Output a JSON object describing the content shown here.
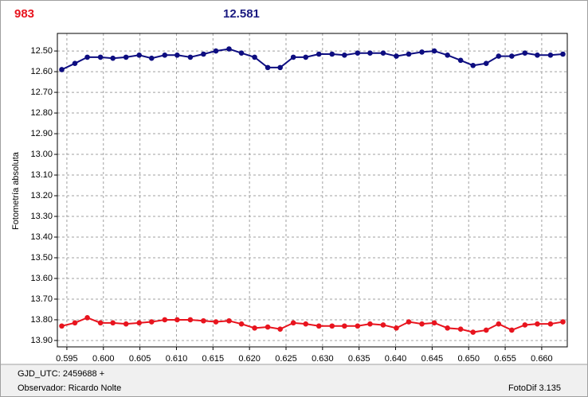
{
  "chart_data": {
    "type": "line",
    "header_labels": [
      {
        "text": "983",
        "color": "#e8141e"
      },
      {
        "text": "12.581",
        "color": "#1a1a80"
      }
    ],
    "y_label": "Fotometría absoluta",
    "footer": {
      "left": [
        "GJD_UTC: 2459688 +",
        "Observador: Ricardo Nolte"
      ],
      "right": "FotoDif 3.135"
    },
    "x": [
      0.5943,
      0.5961,
      0.5978,
      0.5996,
      0.6013,
      0.6031,
      0.6049,
      0.6066,
      0.6084,
      0.6101,
      0.6119,
      0.6137,
      0.6154,
      0.6172,
      0.6189,
      0.6207,
      0.6225,
      0.6242,
      0.626,
      0.6277,
      0.6295,
      0.6313,
      0.633,
      0.6348,
      0.6365,
      0.6383,
      0.6401,
      0.6418,
      0.6436,
      0.6453,
      0.6471,
      0.6489,
      0.6506,
      0.6524,
      0.6541,
      0.6559,
      0.6577,
      0.6594,
      0.6612,
      0.6629
    ],
    "series": [
      {
        "color": "#0d0d80",
        "values": [
          12.59,
          12.56,
          12.53,
          12.53,
          12.535,
          12.53,
          12.52,
          12.535,
          12.52,
          12.52,
          12.53,
          12.515,
          12.5,
          12.49,
          12.51,
          12.53,
          12.58,
          12.58,
          12.53,
          12.53,
          12.515,
          12.515,
          12.52,
          12.51,
          12.51,
          12.51,
          12.525,
          12.515,
          12.505,
          12.5,
          12.52,
          12.545,
          12.57,
          12.56,
          12.525,
          12.525,
          12.51,
          12.52,
          12.52,
          12.515
        ]
      },
      {
        "color": "#e8141e",
        "values": [
          13.83,
          13.815,
          13.79,
          13.815,
          13.815,
          13.82,
          13.815,
          13.81,
          13.8,
          13.8,
          13.8,
          13.805,
          13.81,
          13.805,
          13.82,
          13.84,
          13.835,
          13.845,
          13.815,
          13.82,
          13.83,
          13.83,
          13.83,
          13.83,
          13.82,
          13.825,
          13.84,
          13.81,
          13.82,
          13.815,
          13.84,
          13.845,
          13.86,
          13.85,
          13.82,
          13.85,
          13.825,
          13.82,
          13.82,
          13.81
        ]
      }
    ],
    "xlim": [
      0.5937,
      0.6635
    ],
    "xticks": [
      0.595,
      {
        "value": 0.6,
        "label": "0.600"
      },
      0.605,
      {
        "value": 0.61,
        "label": "0.610"
      },
      0.615,
      {
        "value": 0.62,
        "label": "0.620"
      },
      0.625,
      {
        "value": 0.63,
        "label": "0.630"
      },
      0.635,
      {
        "value": 0.64,
        "label": "0.640"
      },
      0.645,
      {
        "value": 0.65,
        "label": "0.650"
      },
      0.655,
      {
        "value": 0.66,
        "label": "0.660"
      }
    ],
    "ylim": [
      12.415,
      13.931
    ],
    "y_inverted": true,
    "yticks": [
      {
        "value": 12.5,
        "label": "12.50"
      },
      {
        "value": 12.6,
        "label": "12.60"
      },
      {
        "value": 12.7,
        "label": "12.70"
      },
      {
        "value": 12.8,
        "label": "12.80"
      },
      {
        "value": 12.9,
        "label": "12.90"
      },
      {
        "value": 13.0,
        "label": "13.00"
      },
      {
        "value": 13.1,
        "label": "13.10"
      },
      {
        "value": 13.2,
        "label": "13.20"
      },
      {
        "value": 13.3,
        "label": "13.30"
      },
      {
        "value": 13.4,
        "label": "13.40"
      },
      {
        "value": 13.5,
        "label": "13.50"
      },
      {
        "value": 13.6,
        "label": "13.60"
      },
      {
        "value": 13.7,
        "label": "13.70"
      },
      {
        "value": 13.8,
        "label": "13.80"
      },
      {
        "value": 13.9,
        "label": "13.90"
      }
    ],
    "grid": true
  }
}
